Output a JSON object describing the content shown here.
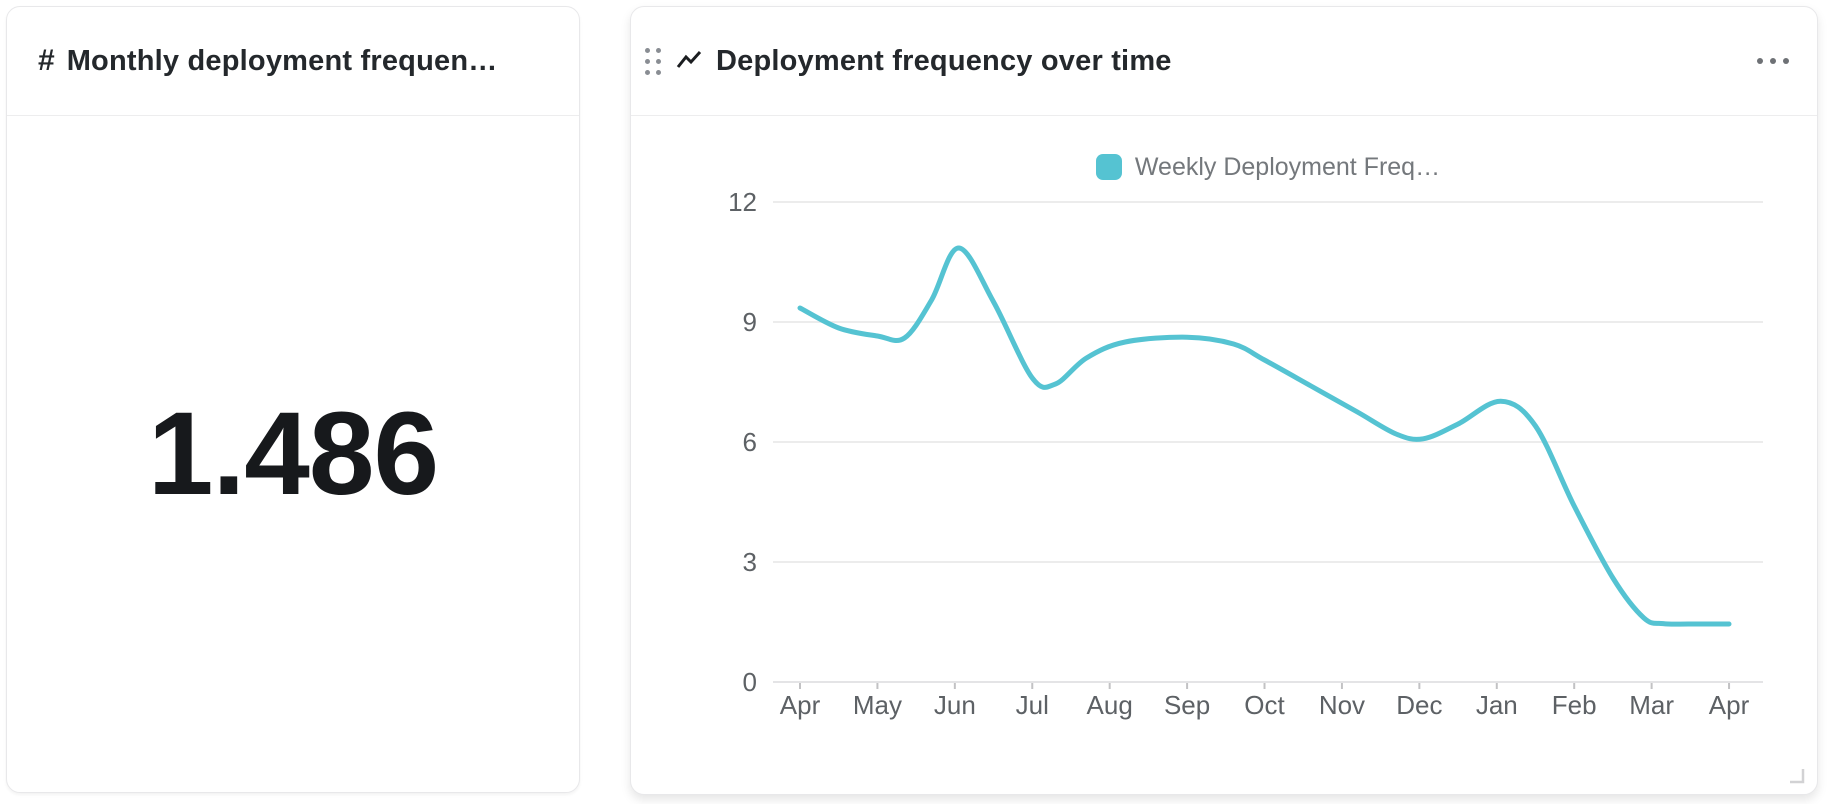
{
  "scalar_card": {
    "icon": "#",
    "title": "Monthly deployment frequen…",
    "value": "1.486"
  },
  "chart_card": {
    "title": "Deployment frequency over time",
    "menu_icon": "ellipsis",
    "drag_icon": "grip-dots",
    "viz_icon": "line-chart"
  },
  "chart_data": {
    "type": "line",
    "title": "Deployment frequency over time",
    "legend_label": "Weekly Deployment Freq…",
    "legend_position": "top-center",
    "grid": true,
    "smooth": true,
    "line_color": "#55c3d2",
    "categories": [
      "Apr",
      "May",
      "Jun",
      "Jul",
      "Aug",
      "Sep",
      "Oct",
      "Nov",
      "Dec",
      "Jan",
      "Feb",
      "Mar",
      "Apr"
    ],
    "series": [
      {
        "name": "Weekly Deployment Freq…",
        "values": [
          9.35,
          8.65,
          10.85,
          7.5,
          8.55,
          8.65,
          8.0,
          7.0,
          6.1,
          7.0,
          4.4,
          1.5,
          1.45
        ]
      }
    ],
    "curve_points": [
      [
        0,
        9.35
      ],
      [
        0.5,
        8.85
      ],
      [
        1,
        8.65
      ],
      [
        1.35,
        8.6
      ],
      [
        1.7,
        9.55
      ],
      [
        2.05,
        10.85
      ],
      [
        2.5,
        9.5
      ],
      [
        3,
        7.6
      ],
      [
        3.3,
        7.45
      ],
      [
        3.7,
        8.1
      ],
      [
        4.2,
        8.5
      ],
      [
        5,
        8.62
      ],
      [
        5.6,
        8.45
      ],
      [
        6,
        8.05
      ],
      [
        6.6,
        7.4
      ],
      [
        7.2,
        6.75
      ],
      [
        7.7,
        6.2
      ],
      [
        8.05,
        6.08
      ],
      [
        8.5,
        6.45
      ],
      [
        9.05,
        7.02
      ],
      [
        9.5,
        6.4
      ],
      [
        10,
        4.4
      ],
      [
        10.5,
        2.6
      ],
      [
        10.9,
        1.6
      ],
      [
        11.15,
        1.46
      ],
      [
        11.5,
        1.45
      ],
      [
        12,
        1.45
      ]
    ],
    "y_ticks": [
      0,
      3,
      6,
      9,
      12
    ],
    "ylim": [
      0,
      12
    ]
  }
}
